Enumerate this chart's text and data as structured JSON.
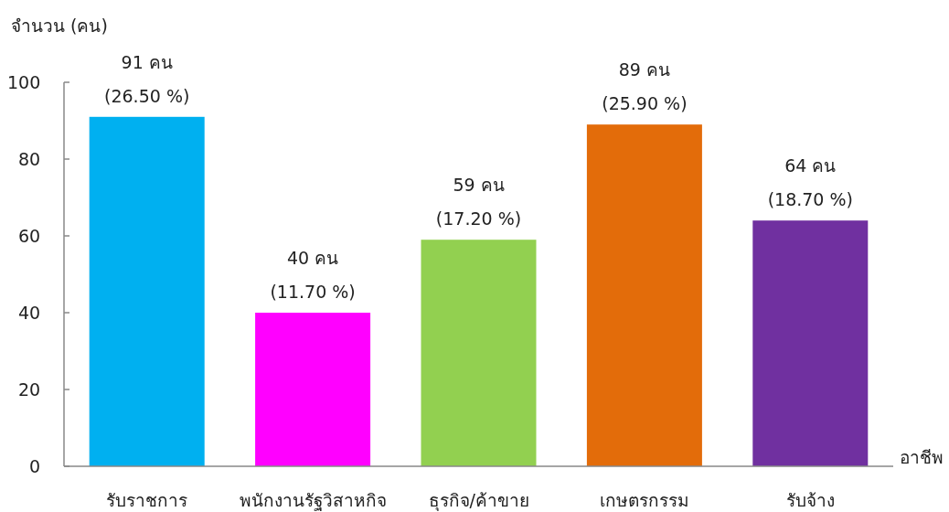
{
  "chart_data": {
    "type": "bar",
    "ylabel": "จำนวน (คน)",
    "xlabel": "อาชีพ",
    "categories": [
      "รับราชการ",
      "พนักงานรัฐวิสาหกิจ",
      "ธุรกิจ/ค้าขาย",
      "เกษตรกรรม",
      "รับจ้าง"
    ],
    "values": [
      91,
      40,
      59,
      89,
      64
    ],
    "colors": [
      "#00b0f0",
      "#ff00ff",
      "#92d050",
      "#e36c0a",
      "#7030a0"
    ],
    "value_labels": [
      "91 คน (26.50 %)",
      "40 คน (11.70 %)",
      "59 คน (17.20 %)",
      "89 คน (25.90 %)",
      "64 คน (18.70 %)"
    ],
    "ylim": [
      0,
      100
    ],
    "yticks": [
      0,
      20,
      40,
      60,
      80,
      100
    ]
  }
}
